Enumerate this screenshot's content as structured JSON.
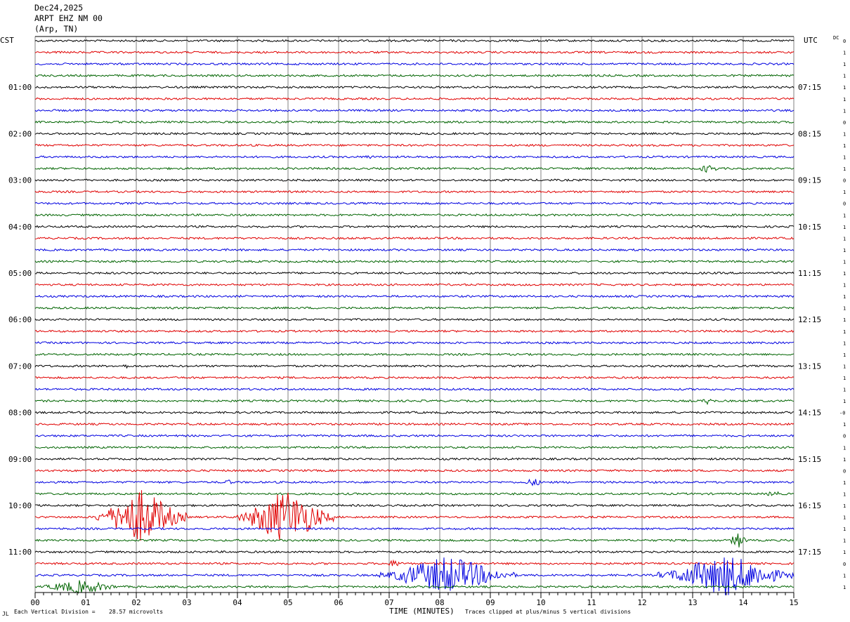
{
  "header": {
    "date": "Dec24,2025",
    "station": "ARPT EHZ NM 00",
    "location": "(Arp, TN)"
  },
  "left_tz": "CST",
  "right_tz": "UTC",
  "dc_header": "DC",
  "footer": {
    "scale_prefix": "Each Vertical Division =",
    "scale_value": "28.57 microvolts",
    "xlabel": "TIME (MINUTES)",
    "clip_note": "Traces clipped at plus/minus 5 vertical divisions",
    "corner_mark": "JL"
  },
  "colors": {
    "trace_cycle": [
      "#000000",
      "#e00000",
      "#0000e0",
      "#006400"
    ],
    "grid": "#808080"
  },
  "chart_data": {
    "type": "helicorder",
    "traces_per_hour": 4,
    "minutes_per_line": 15,
    "x_ticks": [
      "00",
      "01",
      "02",
      "03",
      "04",
      "05",
      "06",
      "07",
      "08",
      "09",
      "10",
      "11",
      "12",
      "13",
      "14",
      "15"
    ],
    "left_hour_labels": [
      "01:00",
      "02:00",
      "03:00",
      "04:00",
      "05:00",
      "06:00",
      "07:00",
      "08:00",
      "09:00",
      "10:00",
      "11:00"
    ],
    "right_hour_labels": [
      "07:15",
      "08:15",
      "09:15",
      "10:15",
      "11:15",
      "12:15",
      "13:15",
      "14:15",
      "15:15",
      "16:15",
      "17:15"
    ],
    "dc_offsets": [
      "0",
      "1",
      "1",
      "1",
      "1",
      "1",
      "1",
      "0",
      "1",
      "1",
      "1",
      "1",
      "0",
      "1",
      "0",
      "1",
      "1",
      "1",
      "1",
      "1",
      "1",
      "1",
      "1",
      "1",
      "1",
      "1",
      "1",
      "1",
      "1",
      "1",
      "1",
      "1",
      "-0",
      "1",
      "0",
      "1",
      "1",
      "0",
      "1",
      "1",
      "1",
      "1",
      "1",
      "1",
      "1",
      "0",
      "1",
      "1"
    ],
    "events": [
      {
        "line": 10,
        "start_min": 6.4,
        "end_min": 6.8,
        "amp": 3
      },
      {
        "line": 11,
        "start_min": 13.0,
        "end_min": 13.6,
        "amp": 6
      },
      {
        "line": 28,
        "start_min": 1.6,
        "end_min": 2.0,
        "amp": 3
      },
      {
        "line": 31,
        "start_min": 13.1,
        "end_min": 13.5,
        "amp": 5
      },
      {
        "line": 38,
        "start_min": 3.6,
        "end_min": 4.0,
        "amp": 4
      },
      {
        "line": 38,
        "start_min": 9.6,
        "end_min": 10.1,
        "amp": 6
      },
      {
        "line": 39,
        "start_min": 14.4,
        "end_min": 14.8,
        "amp": 5
      },
      {
        "line": 41,
        "start_min": 1.2,
        "end_min": 3.0,
        "amp": 40
      },
      {
        "line": 41,
        "start_min": 4.0,
        "end_min": 5.9,
        "amp": 40
      },
      {
        "line": 43,
        "start_min": 13.7,
        "end_min": 14.1,
        "amp": 12
      },
      {
        "line": 45,
        "start_min": 6.8,
        "end_min": 7.4,
        "amp": 5
      },
      {
        "line": 46,
        "start_min": 6.8,
        "end_min": 9.5,
        "amp": 28
      },
      {
        "line": 46,
        "start_min": 12.3,
        "end_min": 15.0,
        "amp": 30
      },
      {
        "line": 47,
        "start_min": 0.0,
        "end_min": 1.8,
        "amp": 10
      }
    ]
  }
}
